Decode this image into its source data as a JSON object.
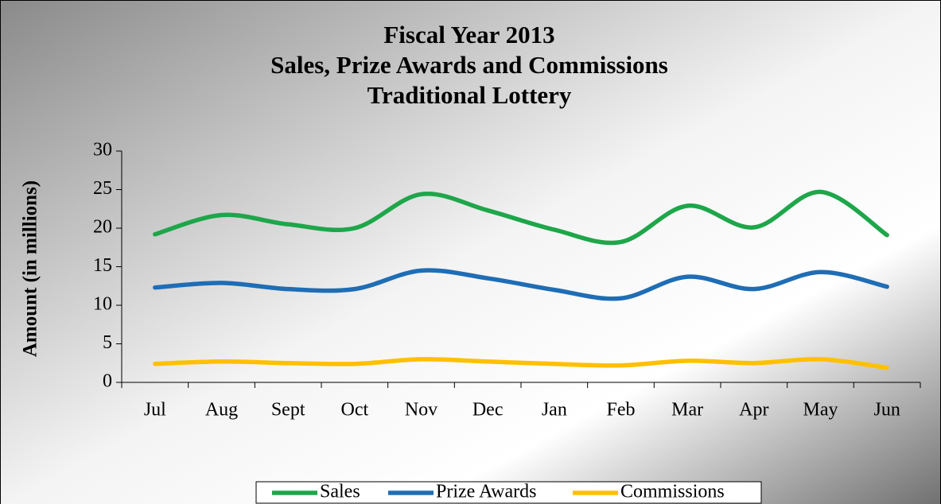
{
  "chart_data": {
    "type": "line",
    "title": [
      "Fiscal Year 2013",
      "Sales, Prize Awards and Commissions",
      "Traditional Lottery"
    ],
    "y_label": "Amount (in millions)",
    "categories": [
      "Jul",
      "Aug",
      "Sept",
      "Oct",
      "Nov",
      "Dec",
      "Jan",
      "Feb",
      "Mar",
      "Apr",
      "May",
      "Jun"
    ],
    "series": [
      {
        "name": "Sales",
        "color": "#1ea64a",
        "values": [
          19.2,
          21.7,
          20.5,
          20.0,
          24.4,
          22.3,
          19.8,
          18.2,
          22.9,
          20.1,
          24.7,
          19.1
        ]
      },
      {
        "name": "Prize Awards",
        "color": "#1f6db5",
        "values": [
          12.3,
          12.9,
          12.1,
          12.1,
          14.5,
          13.5,
          12.0,
          10.9,
          13.7,
          12.1,
          14.3,
          12.4
        ]
      },
      {
        "name": "Commissions",
        "color": "#ffc000",
        "values": [
          2.4,
          2.7,
          2.5,
          2.4,
          3.0,
          2.7,
          2.4,
          2.2,
          2.8,
          2.5,
          3.0,
          1.9
        ]
      }
    ],
    "ylim": [
      0,
      30
    ],
    "yticks": [
      0,
      5,
      10,
      15,
      20,
      25,
      30
    ],
    "smooth": true,
    "legend": "bottom"
  }
}
